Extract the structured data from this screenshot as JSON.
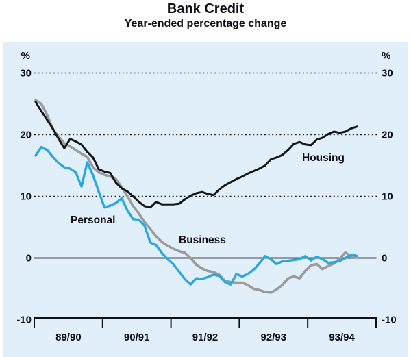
{
  "page": {
    "title": "Bank Credit",
    "subtitle": "Year-ended percentage change"
  },
  "chart_data": {
    "type": "line",
    "title": "Bank Credit",
    "subtitle": "Year-ended percentage change",
    "unit_label_left": "%",
    "unit_label_right": "%",
    "y_tick_labels": [
      "30",
      "20",
      "10",
      "0",
      "-10"
    ],
    "y_tick_values": [
      30,
      20,
      10,
      0,
      -10
    ],
    "ylim": [
      -10,
      33
    ],
    "grid": "horizontal dotted lines at 10, 20, 30; solid line at 0; solid bottom axis at -10",
    "legend_position": "inline labels next to lines",
    "x_tick_labels": [
      "89/90",
      "90/91",
      "91/92",
      "92/93",
      "93/94"
    ],
    "x_note": "monthly points spanning the five labelled fiscal years",
    "points_per_year": 12,
    "series": [
      {
        "name": "Business",
        "color": "#9b9b9b",
        "values": [
          25.6,
          25.0,
          23.2,
          20.9,
          19.7,
          18.6,
          18.1,
          17.5,
          16.9,
          16.4,
          14.7,
          13.9,
          13.5,
          13.2,
          12.8,
          11.5,
          10.0,
          8.4,
          7.2,
          5.8,
          4.7,
          3.5,
          2.6,
          2.0,
          1.5,
          1.1,
          0.85,
          0.0,
          -1.1,
          -1.7,
          -2.1,
          -2.3,
          -2.7,
          -3.7,
          -3.9,
          -4.0,
          -4.0,
          -4.4,
          -5.0,
          -5.2,
          -5.5,
          -5.6,
          -5.1,
          -4.4,
          -3.3,
          -3.0,
          -3.3,
          -2.1,
          -1.2,
          -1.0,
          -1.8,
          -1.3,
          -0.9,
          -0.1,
          0.9,
          0.2,
          0.1
        ]
      },
      {
        "name": "Personal",
        "color": "#29a8e0",
        "values": [
          16.6,
          18.0,
          17.5,
          16.4,
          15.4,
          14.7,
          14.5,
          13.9,
          11.6,
          15.5,
          13.4,
          10.8,
          8.2,
          8.5,
          8.9,
          9.7,
          7.7,
          6.3,
          6.2,
          5.2,
          2.5,
          2.1,
          0.8,
          -0.2,
          -1.0,
          -2.2,
          -3.4,
          -4.3,
          -3.3,
          -3.4,
          -3.1,
          -2.7,
          -2.9,
          -3.9,
          -4.3,
          -2.6,
          -3.0,
          -2.6,
          -1.9,
          -0.9,
          0.3,
          -0.2,
          -1.0,
          -0.55,
          -0.45,
          -0.35,
          -0.2,
          0.3,
          -0.4,
          0.2,
          -0.2,
          -0.8,
          -0.7,
          -0.5,
          0.0,
          0.55,
          0.35
        ]
      },
      {
        "name": "Housing",
        "color": "#161616",
        "values": [
          25.3,
          23.8,
          22.4,
          21.0,
          19.3,
          17.8,
          19.3,
          18.9,
          18.4,
          17.2,
          16.3,
          14.4,
          14.0,
          13.8,
          12.2,
          11.3,
          10.8,
          10.0,
          9.1,
          8.4,
          8.2,
          9.1,
          8.7,
          8.7,
          8.7,
          8.8,
          9.5,
          10.1,
          10.5,
          10.7,
          10.4,
          10.2,
          11.1,
          11.8,
          12.3,
          12.8,
          13.2,
          13.7,
          14.1,
          14.5,
          15.0,
          16.0,
          16.3,
          16.7,
          17.5,
          18.5,
          18.8,
          18.4,
          18.3,
          19.2,
          19.5,
          20.1,
          20.5,
          20.3,
          20.5,
          21.0,
          21.3
        ]
      }
    ]
  },
  "colors": {
    "plot_background": "#e0eff9",
    "page_background": "#ffffff",
    "grid": "#1a1a1a",
    "axis": "#101010",
    "text": "#0e0f18",
    "housing_line": "#161616",
    "personal_line": "#29a8e0",
    "business_line": "#9b9b9b"
  }
}
